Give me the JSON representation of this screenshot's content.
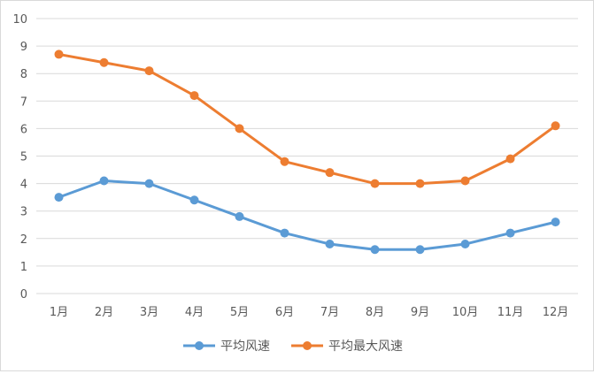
{
  "chart_data": {
    "type": "line",
    "categories": [
      "1月",
      "2月",
      "3月",
      "4月",
      "5月",
      "6月",
      "7月",
      "8月",
      "9月",
      "10月",
      "11月",
      "12月"
    ],
    "series": [
      {
        "name": "平均风速",
        "color": "#5b9bd5",
        "values": [
          3.5,
          4.1,
          4.0,
          3.4,
          2.8,
          2.2,
          1.8,
          1.6,
          1.6,
          1.8,
          2.2,
          2.6
        ]
      },
      {
        "name": "平均最大风速",
        "color": "#ed7d31",
        "values": [
          8.7,
          8.4,
          8.1,
          7.2,
          6.0,
          4.8,
          4.4,
          4.0,
          4.0,
          4.1,
          4.9,
          6.1
        ]
      }
    ],
    "ylim": [
      0,
      10
    ],
    "yticks": [
      "0",
      "1",
      "2",
      "3",
      "4",
      "5",
      "6",
      "7",
      "8",
      "9",
      "10"
    ],
    "grid": true,
    "legend": "bottom"
  }
}
